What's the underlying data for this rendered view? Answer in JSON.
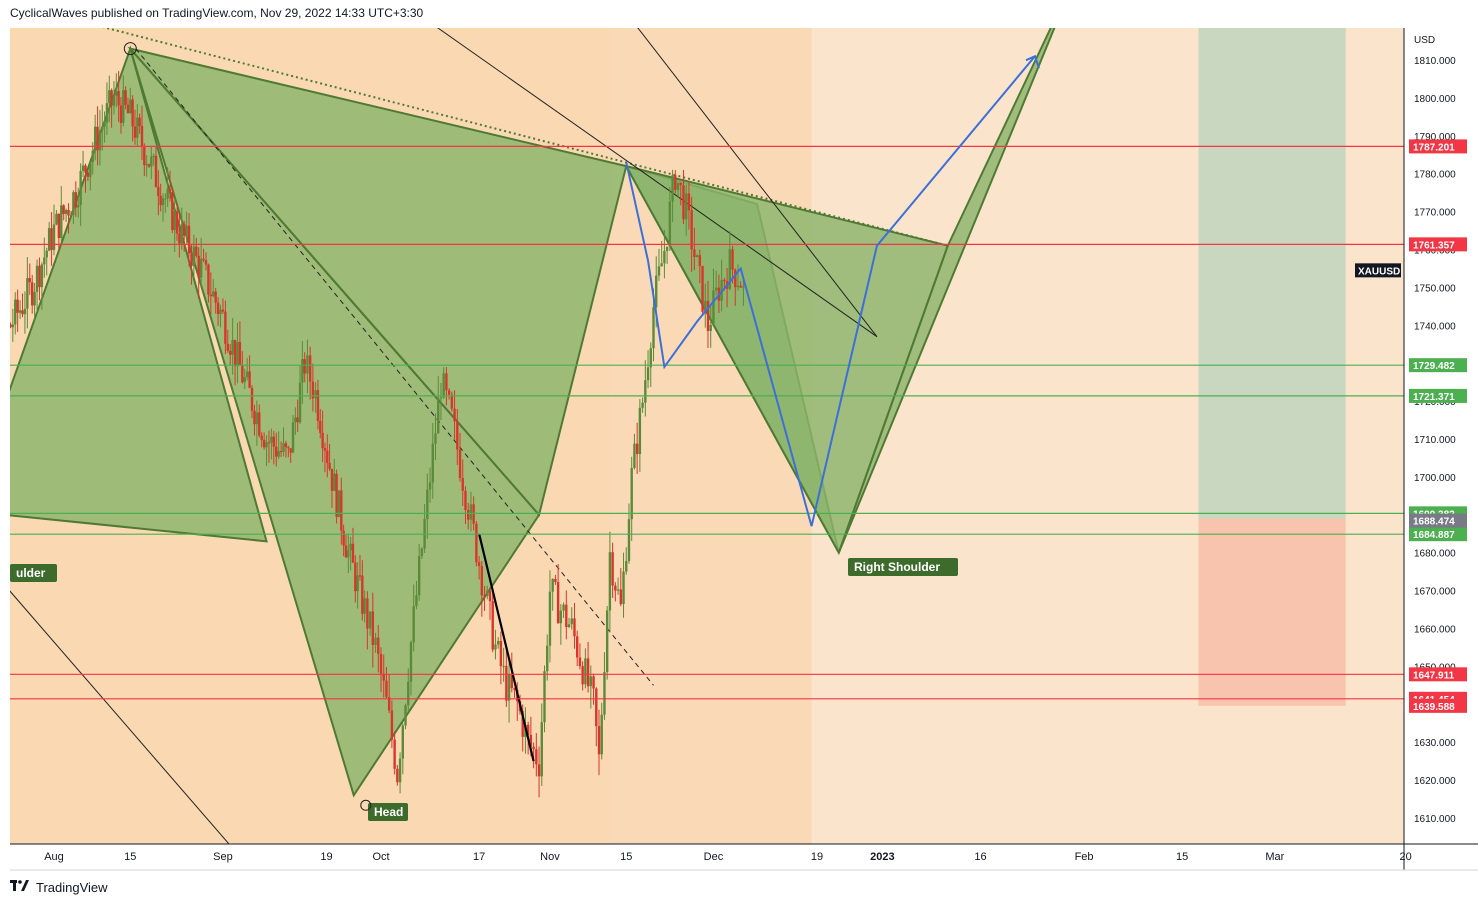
{
  "header": {
    "text": "CyclicalWaves published on TradingView.com, Nov 29, 2022 14:33 UTC+3:30"
  },
  "footer": {
    "brand": "TradingView"
  },
  "chart_data": {
    "type": "candlestick",
    "symbol": "XAUUSD",
    "currency_label": "USD",
    "ylim": [
      1600,
      1830
    ],
    "y_ticks": [
      1610,
      1620,
      1630,
      1640,
      1650,
      1660,
      1670,
      1680,
      1690,
      1700,
      1710,
      1720,
      1730,
      1740,
      1750,
      1760,
      1770,
      1780,
      1790,
      1800,
      1810
    ],
    "y_tick_labels": [
      "1610.000",
      "1620.000",
      "1630.000",
      "1640.000",
      "1650.000",
      "1660.000",
      "1670.000",
      "1680.000",
      "1690.000",
      "1700.000",
      "1710.000",
      "1720.000",
      "1730.000",
      "1740.000",
      "1750.000",
      "1760.000",
      "1770.000",
      "1780.000",
      "1790.000",
      "1800.000",
      "1810.000"
    ],
    "x_ticks": [
      "Aug",
      "15",
      "Sep",
      "19",
      "Oct",
      "17",
      "Nov",
      "15",
      "Dec",
      "19",
      "2023",
      "16",
      "Feb",
      "15",
      "Mar",
      "20"
    ],
    "x_tick_days": [
      -2,
      12,
      29,
      48,
      58,
      76,
      89,
      103,
      119,
      138,
      150,
      168,
      187,
      205,
      222,
      246
    ],
    "levels": [
      {
        "value": 1787.201,
        "label": "1787.201",
        "color": "#f23645"
      },
      {
        "value": 1761.357,
        "label": "1761.357",
        "color": "#f23645"
      },
      {
        "value": 1729.482,
        "label": "1729.482",
        "color": "#4caf50"
      },
      {
        "value": 1721.371,
        "label": "1721.371",
        "color": "#4caf50"
      },
      {
        "value": 1690.382,
        "label": "1690.382",
        "color": "#4caf50"
      },
      {
        "value": 1684.887,
        "label": "1684.887",
        "color": "#4caf50"
      },
      {
        "value": 1647.911,
        "label": "1647.911",
        "color": "#f23645"
      },
      {
        "value": 1641.454,
        "label": "1641.454",
        "color": "#f23645"
      }
    ],
    "extra_price_tags": [
      {
        "value": 1688.474,
        "label": "1688.474",
        "color": "#787b86"
      },
      {
        "value": 1639.588,
        "label": "1639.588",
        "color": "#f23645"
      }
    ],
    "symbol_tag_value": 1754.5,
    "head_and_shoulders": {
      "left_shoulder_label": "ulder",
      "head_label": "Head",
      "right_shoulder_label": "Right Shoulder",
      "triangles": [
        [
          [
            -18,
            1691
          ],
          [
            12,
            1813
          ],
          [
            37,
            1683
          ]
        ],
        [
          [
            12,
            1813
          ],
          [
            53,
            1616
          ],
          [
            87,
            1690
          ]
        ],
        [
          [
            12,
            1813
          ],
          [
            87,
            1690
          ],
          [
            103,
            1782
          ]
        ],
        [
          [
            103,
            1782
          ],
          [
            127,
            1772
          ],
          [
            142,
            1680
          ]
        ],
        [
          [
            103,
            1782
          ],
          [
            142,
            1680
          ],
          [
            162,
            1761
          ]
        ],
        [
          [
            142,
            1680
          ],
          [
            162,
            1761
          ],
          [
            186,
            1834
          ]
        ]
      ],
      "neckline_dotted": [
        [
          -18,
          1828
        ],
        [
          162,
          1761
        ]
      ]
    },
    "projection_path": [
      [
        103,
        1783
      ],
      [
        107,
        1757
      ],
      [
        110,
        1729
      ],
      [
        116,
        1741
      ],
      [
        124,
        1755
      ],
      [
        137,
        1687
      ],
      [
        149,
        1761
      ],
      [
        178,
        1811
      ]
    ],
    "green_target_zone": {
      "top": 1830,
      "bottom": 1689
    },
    "red_stop_zone": {
      "top": 1689,
      "bottom": 1639.6
    },
    "channel_lines": [
      [
        [
          59,
          1828
        ],
        [
          149,
          1737
        ]
      ],
      [
        [
          13,
          1813
        ],
        [
          108,
          1645
        ]
      ],
      [
        [
          -18,
          1683
        ],
        [
          32,
          1600
        ]
      ],
      [
        [
          100,
          1828
        ],
        [
          149,
          1737
        ]
      ]
    ],
    "candle_seed_path": [
      [
        -18,
        1720
      ],
      [
        -14,
        1728
      ],
      [
        -10,
        1740
      ],
      [
        -6,
        1750
      ],
      [
        -2,
        1765
      ],
      [
        2,
        1775
      ],
      [
        6,
        1790
      ],
      [
        9,
        1800
      ],
      [
        12,
        1795
      ],
      [
        15,
        1785
      ],
      [
        18,
        1775
      ],
      [
        21,
        1765
      ],
      [
        25,
        1755
      ],
      [
        29,
        1742
      ],
      [
        33,
        1725
      ],
      [
        37,
        1710
      ],
      [
        41,
        1705
      ],
      [
        44,
        1730
      ],
      [
        46,
        1722
      ],
      [
        49,
        1700
      ],
      [
        52,
        1680
      ],
      [
        55,
        1665
      ],
      [
        57,
        1655
      ],
      [
        59,
        1640
      ],
      [
        61,
        1622
      ],
      [
        63,
        1650
      ],
      [
        65,
        1675
      ],
      [
        67,
        1700
      ],
      [
        69,
        1725
      ],
      [
        71,
        1715
      ],
      [
        73,
        1700
      ],
      [
        75,
        1685
      ],
      [
        77,
        1670
      ],
      [
        79,
        1655
      ],
      [
        81,
        1645
      ],
      [
        83,
        1640
      ],
      [
        85,
        1630
      ],
      [
        87,
        1625
      ],
      [
        89,
        1670
      ],
      [
        91,
        1665
      ],
      [
        93,
        1660
      ],
      [
        95,
        1650
      ],
      [
        97,
        1640
      ],
      [
        98,
        1625
      ],
      [
        100,
        1680
      ],
      [
        102,
        1665
      ],
      [
        104,
        1700
      ],
      [
        106,
        1720
      ],
      [
        108,
        1745
      ],
      [
        110,
        1760
      ],
      [
        112,
        1780
      ],
      [
        114,
        1770
      ],
      [
        116,
        1755
      ],
      [
        118,
        1740
      ],
      [
        120,
        1750
      ],
      [
        122,
        1756
      ],
      [
        124,
        1752
      ],
      [
        125,
        1745
      ]
    ]
  }
}
